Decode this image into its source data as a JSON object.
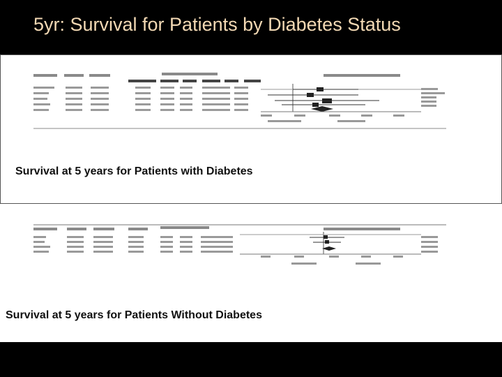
{
  "slide": {
    "title": "5yr: Survival for Patients by Diabetes Status"
  },
  "panels": [
    {
      "caption": "Survival at 5 years for Patients with Diabetes"
    },
    {
      "caption": "Survival at 5 years for Patients Without Diabetes"
    }
  ]
}
